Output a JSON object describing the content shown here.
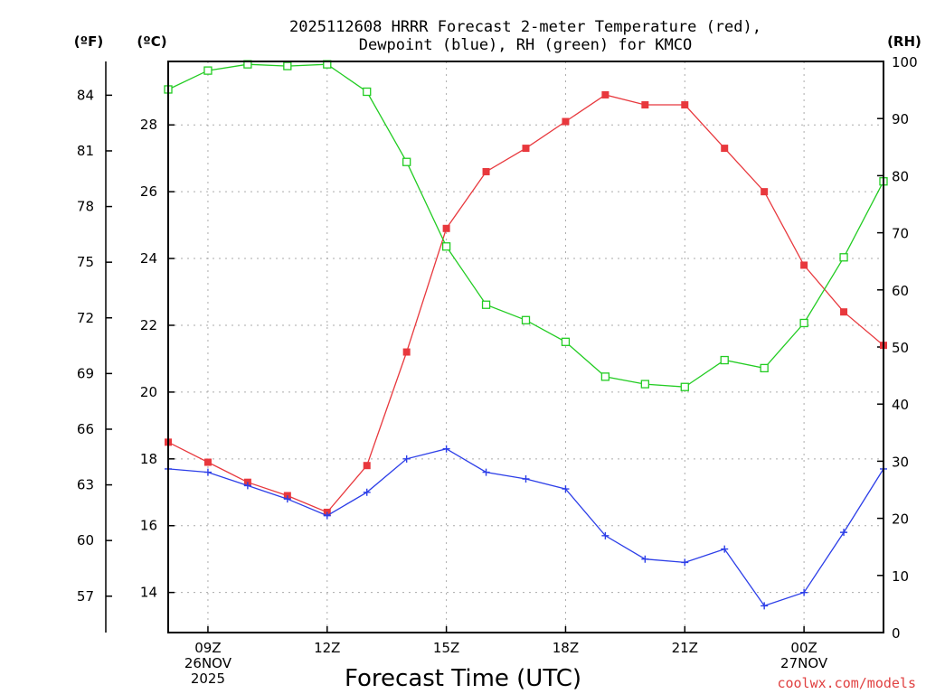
{
  "chart_data": {
    "type": "line",
    "title_lines": [
      "2025112608 HRRR Forecast 2-meter Temperature (red),",
      "Dewpoint (blue), RH (green) for KMCO"
    ],
    "units": {
      "fahrenheit": "(ºF)",
      "celsius": "(ºC)",
      "rh": "(RH)"
    },
    "xlabel": "Forecast Time (UTC)",
    "credit": "coolwx.com/models",
    "x_hours": [
      8,
      9,
      10,
      11,
      12,
      13,
      14,
      15,
      16,
      17,
      18,
      19,
      20,
      21,
      22,
      23,
      24,
      25,
      26
    ],
    "x_range": [
      8,
      26
    ],
    "x_ticks": [
      {
        "hour": 9,
        "lines": [
          "09Z",
          "26NOV",
          "2025"
        ]
      },
      {
        "hour": 12,
        "lines": [
          "12Z"
        ]
      },
      {
        "hour": 15,
        "lines": [
          "15Z"
        ]
      },
      {
        "hour": 18,
        "lines": [
          "18Z"
        ]
      },
      {
        "hour": 21,
        "lines": [
          "21Z"
        ]
      },
      {
        "hour": 24,
        "lines": [
          "00Z",
          "27NOV"
        ]
      }
    ],
    "celsius_axis": {
      "range": [
        12.8,
        29.9
      ],
      "ticks": [
        "14",
        "16",
        "18",
        "20",
        "22",
        "24",
        "26",
        "28"
      ]
    },
    "fahrenheit_axis": {
      "ticks": [
        "57",
        "60",
        "63",
        "66",
        "69",
        "72",
        "75",
        "78",
        "81",
        "84"
      ]
    },
    "rh_axis": {
      "range": [
        0,
        100
      ],
      "ticks": [
        "0",
        "10",
        "20",
        "30",
        "40",
        "50",
        "60",
        "70",
        "80",
        "90",
        "100"
      ]
    },
    "series": [
      {
        "name": "Temperature",
        "axis": "celsius",
        "color": "#e8383d",
        "marker": "filled-square",
        "values": [
          18.5,
          17.9,
          17.3,
          16.9,
          16.4,
          17.8,
          21.2,
          24.9,
          26.6,
          27.3,
          28.1,
          28.9,
          28.6,
          28.6,
          27.3,
          26.0,
          23.8,
          22.4,
          21.4
        ]
      },
      {
        "name": "Dewpoint",
        "axis": "celsius",
        "color": "#2c3ee8",
        "marker": "plus",
        "values": [
          17.7,
          17.6,
          17.2,
          16.8,
          16.3,
          17.0,
          18.0,
          18.3,
          17.6,
          17.4,
          17.1,
          15.7,
          15.0,
          14.9,
          15.3,
          13.6,
          14.0,
          15.8,
          17.7
        ]
      },
      {
        "name": "RH",
        "axis": "rh",
        "color": "#22cc22",
        "marker": "open-square",
        "values": [
          95.1,
          98.4,
          99.5,
          99.2,
          99.5,
          94.7,
          82.4,
          67.6,
          57.4,
          54.7,
          50.9,
          44.8,
          43.5,
          43.0,
          47.7,
          46.3,
          54.2,
          65.7,
          79.0
        ]
      }
    ]
  }
}
